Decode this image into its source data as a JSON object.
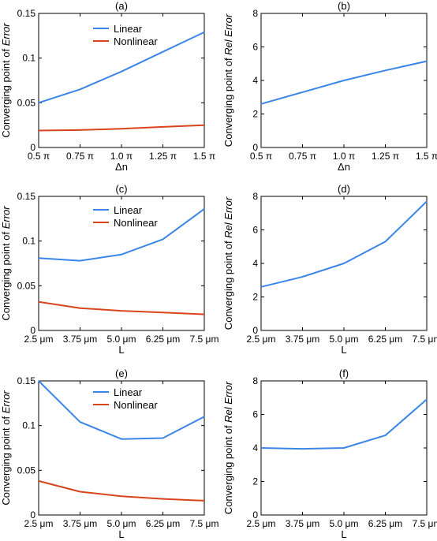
{
  "figure": {
    "colors": {
      "linear": "#3a86e8",
      "nonlinear": "#d9441c",
      "axes": "#000000"
    }
  },
  "chart_data": [
    {
      "panel": "(a)",
      "type": "line",
      "categories": [
        "0.5 π",
        "0.75 π",
        "1.0 π",
        "1.25 π",
        "1.5 π"
      ],
      "xlabel": "Δn",
      "ylabel_prefix": "Converging point of ",
      "ylabel_em": "Error",
      "ylim": [
        0,
        0.15
      ],
      "yticks": [
        "0",
        "0.05",
        "0.1",
        "0.15"
      ],
      "ytick_values": [
        0,
        0.05,
        0.1,
        0.15
      ],
      "legend": "top-center",
      "grid": false,
      "series": [
        {
          "name": "Linear",
          "color": "#3a86e8",
          "values": [
            0.05,
            0.065,
            0.085,
            0.107,
            0.129
          ]
        },
        {
          "name": "Nonlinear",
          "color": "#d9441c",
          "values": [
            0.019,
            0.0195,
            0.021,
            0.023,
            0.025
          ]
        }
      ]
    },
    {
      "panel": "(b)",
      "type": "line",
      "categories": [
        "0.5 π",
        "0.75 π",
        "1.0 π",
        "1.25 π",
        "1.5 π"
      ],
      "xlabel": "Δn",
      "ylabel_prefix": "Converging point of ",
      "ylabel_em": "Rel Error",
      "ylim": [
        0,
        8
      ],
      "yticks": [
        "0",
        "2",
        "4",
        "6",
        "8"
      ],
      "ytick_values": [
        0,
        2,
        4,
        6,
        8
      ],
      "grid": false,
      "series": [
        {
          "color": "#3a86e8",
          "values": [
            2.6,
            3.3,
            4.0,
            4.6,
            5.15
          ]
        }
      ]
    },
    {
      "panel": "(c)",
      "type": "line",
      "categories": [
        "2.5 μm",
        "3.75 μm",
        "5.0 μm",
        "6.25 μm",
        "7.5 μm"
      ],
      "xlabel": "L",
      "ylabel_prefix": "Converging point of ",
      "ylabel_em": "Error",
      "ylim": [
        0,
        0.15
      ],
      "yticks": [
        "0",
        "0.05",
        "0.1",
        "0.15"
      ],
      "ytick_values": [
        0,
        0.05,
        0.1,
        0.15
      ],
      "legend": "top-center",
      "grid": false,
      "series": [
        {
          "name": "Linear",
          "color": "#3a86e8",
          "values": [
            0.081,
            0.078,
            0.085,
            0.102,
            0.136
          ]
        },
        {
          "name": "Nonlinear",
          "color": "#d9441c",
          "values": [
            0.032,
            0.025,
            0.022,
            0.02,
            0.018
          ]
        }
      ]
    },
    {
      "panel": "(d)",
      "type": "line",
      "categories": [
        "2.5 μm",
        "3.75 μm",
        "5.0 μm",
        "6.25 μm",
        "7.5 μm"
      ],
      "xlabel": "L",
      "ylabel_prefix": "Converging point of ",
      "ylabel_em": "Rel Error",
      "ylim": [
        0,
        8
      ],
      "yticks": [
        "0",
        "2",
        "4",
        "6",
        "8"
      ],
      "ytick_values": [
        0,
        2,
        4,
        6,
        8
      ],
      "grid": false,
      "series": [
        {
          "color": "#3a86e8",
          "values": [
            2.6,
            3.2,
            4.0,
            5.3,
            7.7
          ]
        }
      ]
    },
    {
      "panel": "(e)",
      "type": "line",
      "categories": [
        "2.5 μm",
        "3.75 μm",
        "5.0 μm",
        "6.25 μm",
        "7.5 μm"
      ],
      "xlabel": "L",
      "ylabel_prefix": "Converging point of ",
      "ylabel_em": "Error",
      "ylim": [
        0,
        0.15
      ],
      "yticks": [
        "0",
        "0.05",
        "0.1",
        "0.15"
      ],
      "ytick_values": [
        0,
        0.05,
        0.1,
        0.15
      ],
      "legend": "top-center",
      "grid": false,
      "series": [
        {
          "name": "Linear",
          "color": "#3a86e8",
          "values": [
            0.15,
            0.104,
            0.085,
            0.086,
            0.11
          ]
        },
        {
          "name": "Nonlinear",
          "color": "#d9441c",
          "values": [
            0.038,
            0.026,
            0.021,
            0.018,
            0.016
          ]
        }
      ]
    },
    {
      "panel": "(f)",
      "type": "line",
      "categories": [
        "2.5 μm",
        "3.75 μm",
        "5.0 μm",
        "6.25 μm",
        "7.5 μm"
      ],
      "xlabel": "L",
      "ylabel_prefix": "Converging point of ",
      "ylabel_em": "Rel Error",
      "ylim": [
        0,
        8
      ],
      "yticks": [
        "0",
        "2",
        "4",
        "6",
        "8"
      ],
      "ytick_values": [
        0,
        2,
        4,
        6,
        8
      ],
      "grid": false,
      "series": [
        {
          "color": "#3a86e8",
          "values": [
            4.0,
            3.95,
            4.0,
            4.75,
            6.9
          ]
        }
      ]
    }
  ]
}
